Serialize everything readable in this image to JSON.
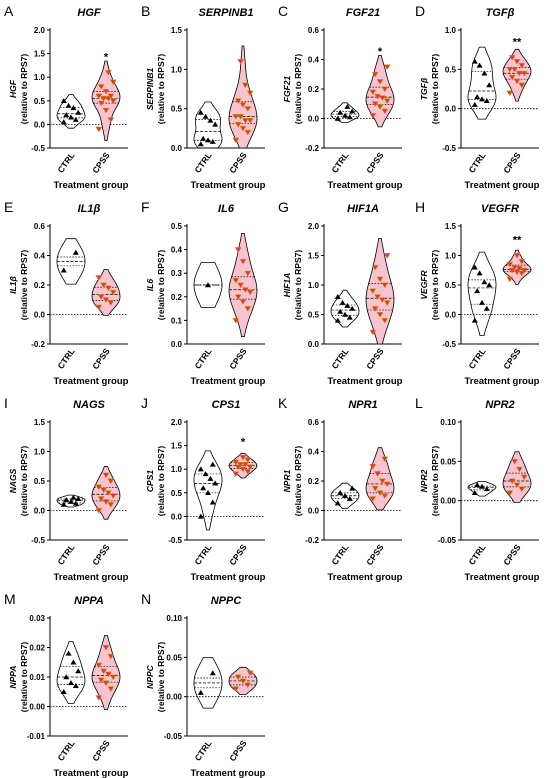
{
  "colors": {
    "ctrl_marker": "#000000",
    "cpss_violin": "#f6c3cf",
    "cpss_marker": "#e8323a",
    "cpss_marker_edge": "#c8a400",
    "text": "#000000"
  },
  "chart_data": [
    {
      "type": "violin",
      "panel": "A",
      "gene": "HGF",
      "ylabel_gene": "HGF",
      "ylabel_rel": "(relative to RPS7)",
      "xlabel": "Treatment group",
      "categories": [
        "CTRL",
        "CPSS"
      ],
      "ylim": [
        -0.5,
        2.0
      ],
      "yticks": [
        "-0.5",
        "0.0",
        "0.5",
        "1.0",
        "1.5",
        "2.0"
      ],
      "significance": "*",
      "series": [
        {
          "name": "CTRL",
          "values": [
            0.05,
            0.1,
            0.15,
            0.2,
            0.25,
            0.35,
            0.4,
            0.5
          ]
        },
        {
          "name": "CPSS",
          "values": [
            -0.1,
            0.1,
            0.3,
            0.45,
            0.5,
            0.55,
            0.55,
            0.6,
            0.6,
            0.7,
            0.8,
            0.9,
            1.1
          ]
        }
      ]
    },
    {
      "type": "violin",
      "panel": "B",
      "gene": "SERPINB1",
      "ylabel_gene": "SERPINB1",
      "ylabel_rel": "(relative to RPS7)",
      "xlabel": "Treatment group",
      "categories": [
        "CTRL",
        "CPSS"
      ],
      "ylim": [
        0.0,
        1.5
      ],
      "yticks": [
        "0.0",
        "0.5",
        "1.0",
        "1.5"
      ],
      "significance": "",
      "series": [
        {
          "name": "CTRL",
          "values": [
            0.05,
            0.08,
            0.1,
            0.12,
            0.3,
            0.35,
            0.4,
            0.45
          ]
        },
        {
          "name": "CPSS",
          "values": [
            0.1,
            0.2,
            0.25,
            0.3,
            0.35,
            0.35,
            0.4,
            0.4,
            0.5,
            0.55,
            0.6,
            0.7,
            0.8,
            1.1
          ]
        }
      ]
    },
    {
      "type": "violin",
      "panel": "C",
      "gene": "FGF21",
      "ylabel_gene": "FGF21",
      "ylabel_rel": "(relative to RPS7)",
      "xlabel": "Treatment group",
      "categories": [
        "CTRL",
        "CPSS"
      ],
      "ylim": [
        -0.2,
        0.6
      ],
      "yticks": [
        "-0.2",
        "0.0",
        "0.2",
        "0.4",
        "0.6"
      ],
      "significance": "*",
      "series": [
        {
          "name": "CTRL",
          "values": [
            0.0,
            0.01,
            0.02,
            0.04,
            0.05,
            0.08
          ]
        },
        {
          "name": "CPSS",
          "values": [
            0.02,
            0.05,
            0.08,
            0.1,
            0.12,
            0.14,
            0.15,
            0.18,
            0.2,
            0.25,
            0.3,
            0.35
          ]
        }
      ]
    },
    {
      "type": "violin",
      "panel": "D",
      "gene": "TGFβ",
      "ylabel_gene": "TGFβ",
      "ylabel_rel": "(relative to RPS7)",
      "xlabel": "Treatment group",
      "categories": [
        "CTRL",
        "CPSS"
      ],
      "ylim": [
        -0.5,
        1.0
      ],
      "yticks": [
        "-0.5",
        "0.0",
        "0.5",
        "1.0"
      ],
      "significance": "**",
      "series": [
        {
          "name": "CTRL",
          "values": [
            0.05,
            0.1,
            0.12,
            0.15,
            0.3,
            0.45,
            0.55,
            0.6
          ]
        },
        {
          "name": "CPSS",
          "values": [
            0.2,
            0.3,
            0.35,
            0.4,
            0.45,
            0.45,
            0.5,
            0.5,
            0.55,
            0.6,
            0.65
          ]
        }
      ]
    },
    {
      "type": "violin",
      "panel": "E",
      "gene": "IL1β",
      "ylabel_gene": "IL1β",
      "ylabel_rel": "(relative to RPS7)",
      "xlabel": "Treatment group",
      "categories": [
        "CTRL",
        "CPSS"
      ],
      "ylim": [
        -0.2,
        0.6
      ],
      "yticks": [
        "-0.2",
        "0.0",
        "0.2",
        "0.4",
        "0.6"
      ],
      "significance": "",
      "series": [
        {
          "name": "CTRL",
          "values": [
            0.3,
            0.42
          ]
        },
        {
          "name": "CPSS",
          "values": [
            0.05,
            0.08,
            0.1,
            0.12,
            0.15,
            0.18,
            0.2,
            0.25
          ]
        }
      ]
    },
    {
      "type": "violin",
      "panel": "F",
      "gene": "IL6",
      "ylabel_gene": "IL6",
      "ylabel_rel": "(relative to RPS7)",
      "xlabel": "Treatment group",
      "categories": [
        "CTRL",
        "CPSS"
      ],
      "ylim": [
        0.0,
        0.5
      ],
      "yticks": [
        "0.0",
        "0.1",
        "0.2",
        "0.3",
        "0.4",
        "0.5"
      ],
      "significance": "",
      "series": [
        {
          "name": "CTRL",
          "values": [
            0.25
          ]
        },
        {
          "name": "CPSS",
          "values": [
            0.1,
            0.15,
            0.18,
            0.2,
            0.22,
            0.23,
            0.25,
            0.27,
            0.3,
            0.35,
            0.4
          ]
        }
      ]
    },
    {
      "type": "violin",
      "panel": "G",
      "gene": "HIF1A",
      "ylabel_gene": "HIF1A",
      "ylabel_rel": "(relative to RPS7)",
      "xlabel": "Treatment group",
      "categories": [
        "CTRL",
        "CPSS"
      ],
      "ylim": [
        0.0,
        2.0
      ],
      "yticks": [
        "0.0",
        "0.5",
        "1.0",
        "1.5",
        "2.0"
      ],
      "significance": "",
      "series": [
        {
          "name": "CTRL",
          "values": [
            0.4,
            0.45,
            0.5,
            0.55,
            0.6,
            0.65,
            0.7,
            0.8
          ]
        },
        {
          "name": "CPSS",
          "values": [
            0.2,
            0.4,
            0.5,
            0.6,
            0.7,
            0.75,
            0.8,
            0.9,
            1.0,
            1.1,
            1.3,
            1.5
          ]
        }
      ]
    },
    {
      "type": "violin",
      "panel": "H",
      "gene": "VEGFR",
      "ylabel_gene": "VEGFR",
      "ylabel_rel": "(relative to RPS7)",
      "xlabel": "Treatment group",
      "categories": [
        "CTRL",
        "CPSS"
      ],
      "ylim": [
        -0.5,
        1.5
      ],
      "yticks": [
        "-0.5",
        "0.0",
        "0.5",
        "1.0",
        "1.5"
      ],
      "significance": "**",
      "series": [
        {
          "name": "CTRL",
          "values": [
            -0.1,
            0.1,
            0.2,
            0.4,
            0.5,
            0.55,
            0.7,
            0.8
          ]
        },
        {
          "name": "CPSS",
          "values": [
            0.6,
            0.7,
            0.72,
            0.75,
            0.75,
            0.78,
            0.8,
            0.85,
            0.9,
            1.0
          ]
        }
      ]
    },
    {
      "type": "violin",
      "panel": "I",
      "gene": "NAGS",
      "ylabel_gene": "NAGS",
      "ylabel_rel": "(relative to RPS7)",
      "xlabel": "Treatment group",
      "categories": [
        "CTRL",
        "CPSS"
      ],
      "ylim": [
        -0.5,
        1.5
      ],
      "yticks": [
        "-0.5",
        "0.0",
        "0.5",
        "1.0",
        "1.5"
      ],
      "significance": "",
      "series": [
        {
          "name": "CTRL",
          "values": [
            0.1,
            0.12,
            0.15,
            0.18,
            0.2,
            0.22
          ]
        },
        {
          "name": "CPSS",
          "values": [
            0.0,
            0.1,
            0.15,
            0.2,
            0.25,
            0.3,
            0.35,
            0.4,
            0.5,
            0.6
          ]
        }
      ]
    },
    {
      "type": "violin",
      "panel": "J",
      "gene": "CPS1",
      "ylabel_gene": "CPS1",
      "ylabel_rel": "(relative to RPS7)",
      "xlabel": "Treatment group",
      "categories": [
        "CTRL",
        "CPSS"
      ],
      "ylim": [
        -0.5,
        2.0
      ],
      "yticks": [
        "-0.5",
        "0.0",
        "0.5",
        "1.0",
        "1.5",
        "2.0"
      ],
      "significance": "*",
      "series": [
        {
          "name": "CTRL",
          "values": [
            0.0,
            0.3,
            0.5,
            0.6,
            0.7,
            0.8,
            0.9,
            1.0,
            1.1
          ]
        },
        {
          "name": "CPSS",
          "values": [
            0.9,
            0.95,
            1.0,
            1.05,
            1.05,
            1.1,
            1.1,
            1.15,
            1.2,
            1.25
          ]
        }
      ]
    },
    {
      "type": "violin",
      "panel": "K",
      "gene": "NPR1",
      "ylabel_gene": "NPR1",
      "ylabel_rel": "(relative to RPS7)",
      "xlabel": "Treatment group",
      "categories": [
        "CTRL",
        "CPSS"
      ],
      "ylim": [
        -0.2,
        0.6
      ],
      "yticks": [
        "-0.2",
        "0.0",
        "0.2",
        "0.4",
        "0.6"
      ],
      "significance": "",
      "series": [
        {
          "name": "CTRL",
          "values": [
            0.05,
            0.08,
            0.1,
            0.12,
            0.15
          ]
        },
        {
          "name": "CPSS",
          "values": [
            0.08,
            0.1,
            0.12,
            0.15,
            0.18,
            0.2,
            0.25,
            0.3,
            0.35
          ]
        }
      ]
    },
    {
      "type": "violin",
      "panel": "L",
      "gene": "NPR2",
      "ylabel_gene": "NPR2",
      "ylabel_rel": "(relative to RPS7)",
      "xlabel": "Treatment group",
      "categories": [
        "CTRL",
        "CPSS"
      ],
      "ylim": [
        -0.05,
        0.1
      ],
      "yticks": [
        "-0.05",
        "0.00",
        "0.05",
        "0.10"
      ],
      "significance": "",
      "series": [
        {
          "name": "CTRL",
          "values": [
            0.01,
            0.015,
            0.018,
            0.02
          ]
        },
        {
          "name": "CPSS",
          "values": [
            0.01,
            0.015,
            0.02,
            0.025,
            0.03,
            0.04,
            0.05
          ]
        }
      ]
    },
    {
      "type": "violin",
      "panel": "M",
      "gene": "NPPA",
      "ylabel_gene": "NPPA",
      "ylabel_rel": "(relative to RPS7)",
      "xlabel": "Treatment group",
      "categories": [
        "CTRL",
        "CPSS"
      ],
      "ylim": [
        -0.01,
        0.03
      ],
      "yticks": [
        "-0.01",
        "0.00",
        "0.01",
        "0.02",
        "0.03"
      ],
      "significance": "",
      "series": [
        {
          "name": "CTRL",
          "values": [
            0.005,
            0.007,
            0.008,
            0.01,
            0.012,
            0.015,
            0.018
          ]
        },
        {
          "name": "CPSS",
          "values": [
            0.003,
            0.006,
            0.008,
            0.009,
            0.01,
            0.011,
            0.012,
            0.014,
            0.017,
            0.02
          ]
        }
      ]
    },
    {
      "type": "violin",
      "panel": "N",
      "gene": "NPPC",
      "ylabel_gene": "NPPC",
      "ylabel_rel": "(relative to RPS7)",
      "xlabel": "Treatment group",
      "categories": [
        "CTRL",
        "CPSS"
      ],
      "ylim": [
        -0.05,
        0.1
      ],
      "yticks": [
        "-0.05",
        "0.00",
        "0.05",
        "0.10"
      ],
      "significance": "",
      "series": [
        {
          "name": "CTRL",
          "values": [
            0.005,
            0.03
          ]
        },
        {
          "name": "CPSS",
          "values": [
            0.01,
            0.015,
            0.02,
            0.025,
            0.03
          ]
        }
      ]
    }
  ]
}
